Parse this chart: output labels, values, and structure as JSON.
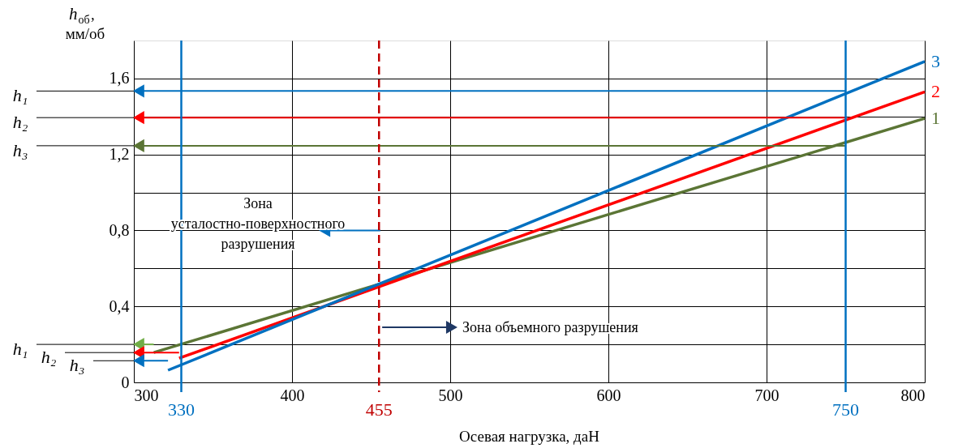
{
  "chart_data": {
    "type": "line",
    "xlabel": "Осевая нагрузка, даН",
    "ylabel": "h$_{об}$, мм/об",
    "xlim": [
      300,
      800
    ],
    "xticks": [
      300,
      400,
      500,
      600,
      700,
      800
    ],
    "ylim": [
      0,
      1.8
    ],
    "yticks": [
      {
        "value": 0,
        "label": "0"
      },
      {
        "value": 0.2,
        "label": null
      },
      {
        "value": 0.4,
        "label": "0,4"
      },
      {
        "value": 0.6,
        "label": null
      },
      {
        "value": 0.8,
        "label": "0,8"
      },
      {
        "value": 1.0,
        "label": null
      },
      {
        "value": 1.2,
        "label": "1,2"
      },
      {
        "value": 1.4,
        "label": null
      },
      {
        "value": 1.6,
        "label": "1,6"
      }
    ],
    "grid": true,
    "series": [
      {
        "name": "1",
        "color": "#5b7535",
        "x": [
          312.6,
          800
        ],
        "values": [
          0.157,
          1.39
        ]
      },
      {
        "name": "2",
        "color": "#ff0000",
        "x": [
          328.6,
          800
        ],
        "values": [
          0.127,
          1.53
        ]
      },
      {
        "name": "3",
        "color": "#0070c0",
        "x": [
          321.6,
          800
        ],
        "values": [
          0.064,
          1.69
        ]
      },
      {
        "name": "h₁",
        "color": "#0070c0",
        "x": [
          750,
          303
        ],
        "values": [
          1.534,
          1.534
        ]
      },
      {
        "name": "h₂",
        "color": "#ff0000",
        "x": [
          750,
          303
        ],
        "values": [
          1.394,
          1.394
        ]
      },
      {
        "name": "h₃",
        "color": "#5b7535",
        "x": [
          750,
          303
        ],
        "values": [
          1.246,
          1.246
        ]
      },
      {
        "name": "h₁",
        "color": "#70ad47",
        "x": [
          312.6,
          303
        ],
        "values": [
          0.2,
          0.2
        ]
      },
      {
        "name": "h₂",
        "color": "#ff0000",
        "x": [
          328.6,
          303
        ],
        "values": [
          0.157,
          0.157
        ]
      },
      {
        "name": "h₃",
        "color": "#0070c0",
        "x": [
          321.6,
          303
        ],
        "values": [
          0.114,
          0.114
        ]
      },
      {
        "color": "#0070c0",
        "x": [
          455.8,
          420.6
        ],
        "values": [
          0.8,
          0.8
        ]
      },
      {
        "color": "#1f3864",
        "x": [
          457,
          501
        ],
        "values": [
          0.29,
          0.29
        ]
      }
    ],
    "ref_lines": [
      {
        "axis": "x",
        "value": 330,
        "label": "330",
        "color": "#0070c0"
      },
      {
        "axis": "x",
        "value": 455,
        "label": "455",
        "color": "#c00000",
        "line_style": "dashed"
      },
      {
        "axis": "x",
        "value": 750,
        "label": "750",
        "color": "#0070c0"
      }
    ],
    "annotations": [
      "Зона\nусталостно-поверхностного\nразрушения",
      "Зона объемного разрушения"
    ]
  }
}
